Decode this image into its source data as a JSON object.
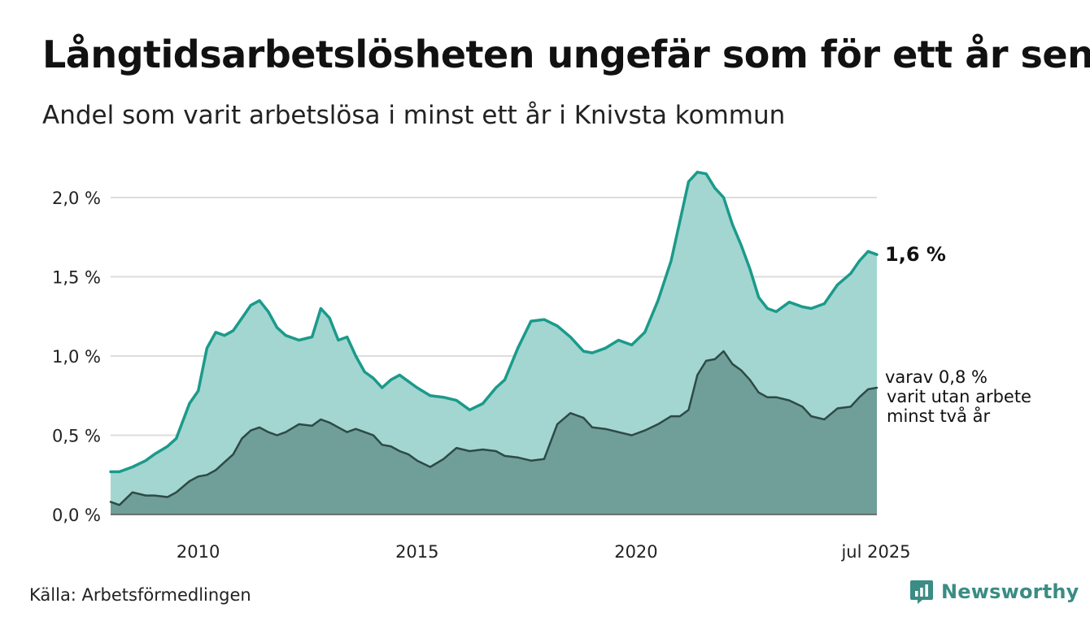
{
  "title": "Långtidsarbetslösheten ungefär som för ett år sen",
  "subtitle": "Andel som varit arbetslösa i minst ett år i Knivsta kommun",
  "source": "Källa: Arbetsförmedlingen",
  "brand": "Newsworthy",
  "colors": {
    "upper_line": "#1b9a8b",
    "upper_fill": "#a3d6d0",
    "lower_line": "#2e4a46",
    "lower_fill": "#6f9f98",
    "grid": "#dddddd",
    "brand": "#3a8c84"
  },
  "chart_data": {
    "type": "area",
    "x_range": [
      2008.0,
      2025.5
    ],
    "ylim": [
      0,
      2.25
    ],
    "y_ticks": [
      {
        "value": 0.0,
        "label": "0,0 %"
      },
      {
        "value": 0.5,
        "label": "0,5 %"
      },
      {
        "value": 1.0,
        "label": "1,0 %"
      },
      {
        "value": 1.5,
        "label": "1,5 %"
      },
      {
        "value": 2.0,
        "label": "2,0 %"
      }
    ],
    "x_ticks": [
      {
        "value": 2010,
        "label": "2010"
      },
      {
        "value": 2015,
        "label": "2015"
      },
      {
        "value": 2020,
        "label": "2020"
      },
      {
        "value": 2025.5,
        "label": "jul 2025"
      }
    ],
    "grid": true,
    "series": [
      {
        "end_label": "1,6 %",
        "x": [
          2008.0,
          2008.2,
          2008.5,
          2008.8,
          2009.0,
          2009.3,
          2009.5,
          2009.8,
          2010.0,
          2010.2,
          2010.4,
          2010.6,
          2010.8,
          2011.0,
          2011.2,
          2011.4,
          2011.6,
          2011.8,
          2012.0,
          2012.3,
          2012.6,
          2012.8,
          2013.0,
          2013.2,
          2013.4,
          2013.6,
          2013.8,
          2014.0,
          2014.2,
          2014.4,
          2014.6,
          2014.8,
          2015.0,
          2015.3,
          2015.6,
          2015.9,
          2016.2,
          2016.5,
          2016.8,
          2017.0,
          2017.3,
          2017.6,
          2017.9,
          2018.2,
          2018.5,
          2018.8,
          2019.0,
          2019.3,
          2019.6,
          2019.9,
          2020.2,
          2020.5,
          2020.8,
          2021.0,
          2021.2,
          2021.4,
          2021.6,
          2021.8,
          2022.0,
          2022.2,
          2022.4,
          2022.6,
          2022.8,
          2023.0,
          2023.2,
          2023.5,
          2023.8,
          2024.0,
          2024.3,
          2024.6,
          2024.9,
          2025.1,
          2025.3,
          2025.5
        ],
        "values": [
          0.27,
          0.27,
          0.3,
          0.34,
          0.38,
          0.43,
          0.48,
          0.7,
          0.78,
          1.05,
          1.15,
          1.13,
          1.16,
          1.24,
          1.32,
          1.35,
          1.28,
          1.18,
          1.13,
          1.1,
          1.12,
          1.3,
          1.24,
          1.1,
          1.12,
          1.0,
          0.9,
          0.86,
          0.8,
          0.85,
          0.88,
          0.84,
          0.8,
          0.75,
          0.74,
          0.72,
          0.66,
          0.7,
          0.8,
          0.85,
          1.05,
          1.22,
          1.23,
          1.19,
          1.12,
          1.03,
          1.02,
          1.05,
          1.1,
          1.07,
          1.15,
          1.35,
          1.6,
          1.85,
          2.1,
          2.16,
          2.15,
          2.06,
          2.0,
          1.83,
          1.7,
          1.55,
          1.37,
          1.3,
          1.28,
          1.34,
          1.31,
          1.3,
          1.33,
          1.45,
          1.52,
          1.6,
          1.66,
          1.64
        ]
      },
      {
        "end_label": "varav 0,8 %\nvarit utan arbete\nminst två år",
        "x": [
          2008.0,
          2008.2,
          2008.5,
          2008.8,
          2009.0,
          2009.3,
          2009.5,
          2009.8,
          2010.0,
          2010.2,
          2010.4,
          2010.6,
          2010.8,
          2011.0,
          2011.2,
          2011.4,
          2011.6,
          2011.8,
          2012.0,
          2012.3,
          2012.6,
          2012.8,
          2013.0,
          2013.2,
          2013.4,
          2013.6,
          2013.8,
          2014.0,
          2014.2,
          2014.4,
          2014.6,
          2014.8,
          2015.0,
          2015.3,
          2015.6,
          2015.9,
          2016.2,
          2016.5,
          2016.8,
          2017.0,
          2017.3,
          2017.6,
          2017.9,
          2018.2,
          2018.5,
          2018.8,
          2019.0,
          2019.3,
          2019.6,
          2019.9,
          2020.2,
          2020.5,
          2020.8,
          2021.0,
          2021.2,
          2021.4,
          2021.6,
          2021.8,
          2022.0,
          2022.2,
          2022.4,
          2022.6,
          2022.8,
          2023.0,
          2023.2,
          2023.5,
          2023.8,
          2024.0,
          2024.3,
          2024.6,
          2024.9,
          2025.1,
          2025.3,
          2025.5
        ],
        "values": [
          0.08,
          0.06,
          0.14,
          0.12,
          0.12,
          0.11,
          0.14,
          0.21,
          0.24,
          0.25,
          0.28,
          0.33,
          0.38,
          0.48,
          0.53,
          0.55,
          0.52,
          0.5,
          0.52,
          0.57,
          0.56,
          0.6,
          0.58,
          0.55,
          0.52,
          0.54,
          0.52,
          0.5,
          0.44,
          0.43,
          0.4,
          0.38,
          0.34,
          0.3,
          0.35,
          0.42,
          0.4,
          0.41,
          0.4,
          0.37,
          0.36,
          0.34,
          0.35,
          0.57,
          0.64,
          0.61,
          0.55,
          0.54,
          0.52,
          0.5,
          0.53,
          0.57,
          0.62,
          0.62,
          0.66,
          0.88,
          0.97,
          0.98,
          1.03,
          0.95,
          0.91,
          0.85,
          0.77,
          0.74,
          0.74,
          0.72,
          0.68,
          0.62,
          0.6,
          0.67,
          0.68,
          0.74,
          0.79,
          0.8
        ]
      }
    ]
  }
}
